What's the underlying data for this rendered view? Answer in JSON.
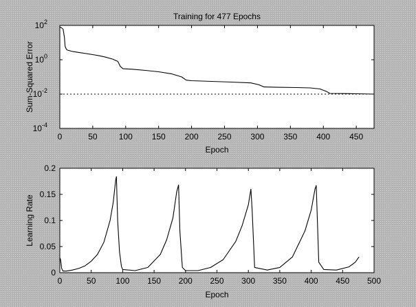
{
  "chart_data": [
    {
      "type": "line",
      "title": "Training for 477 Epochs",
      "xlabel": "Epoch",
      "ylabel": "Sum-Squared Error",
      "xlim": [
        0,
        477
      ],
      "ylim": [
        0.0001,
        100
      ],
      "yscale": "log",
      "xticks": [
        0,
        50,
        100,
        150,
        200,
        250,
        300,
        350,
        400,
        450
      ],
      "yticks": [
        {
          "value": 100,
          "base": "10",
          "exp": "2"
        },
        {
          "value": 1,
          "base": "10",
          "exp": "0"
        },
        {
          "value": 0.01,
          "base": "10",
          "exp": "-2"
        },
        {
          "value": 0.0001,
          "base": "10",
          "exp": "-4"
        }
      ],
      "grid": false,
      "series": [
        {
          "color": "#000000",
          "style": "solid",
          "x": [
            0,
            2,
            5,
            7,
            8,
            10,
            12,
            20,
            30,
            40,
            50,
            60,
            70,
            80,
            88,
            92,
            96,
            110,
            130,
            150,
            170,
            185,
            192,
            200,
            230,
            260,
            290,
            302,
            310,
            330,
            360,
            380,
            395,
            405,
            410,
            430,
            450,
            477
          ],
          "y": [
            80,
            75,
            60,
            20,
            6,
            4,
            3.6,
            3.0,
            2.6,
            2.3,
            2.0,
            1.7,
            1.4,
            1.1,
            0.8,
            0.4,
            0.3,
            0.28,
            0.24,
            0.2,
            0.15,
            0.1,
            0.065,
            0.06,
            0.055,
            0.05,
            0.045,
            0.035,
            0.026,
            0.025,
            0.024,
            0.023,
            0.02,
            0.014,
            0.011,
            0.0108,
            0.0105,
            0.01
          ]
        },
        {
          "color": "#000000",
          "style": "dotted",
          "x": [
            0,
            477
          ],
          "y": [
            0.01,
            0.01
          ]
        }
      ]
    },
    {
      "type": "line",
      "title": "",
      "xlabel": "Epoch",
      "ylabel": "Learning Rate",
      "xlim": [
        0,
        500
      ],
      "ylim": [
        0,
        0.2
      ],
      "yscale": "linear",
      "xticks": [
        0,
        50,
        100,
        150,
        200,
        250,
        300,
        350,
        400,
        450,
        500
      ],
      "yticks": [
        0,
        0.05,
        0.1,
        0.15,
        0.2
      ],
      "grid": false,
      "series": [
        {
          "color": "#000000",
          "style": "solid",
          "x": [
            0,
            1,
            2,
            3,
            5,
            10,
            20,
            30,
            40,
            50,
            60,
            70,
            80,
            85,
            89,
            90,
            92,
            95,
            98,
            100,
            120,
            140,
            160,
            170,
            180,
            186,
            189,
            191,
            195,
            200,
            220,
            240,
            260,
            280,
            290,
            300,
            304,
            306,
            310,
            330,
            350,
            370,
            390,
            400,
            406,
            408,
            412,
            420,
            440,
            460,
            470,
            476
          ],
          "y": [
            0.028,
            0.026,
            0.018,
            0.008,
            0.003,
            0.003,
            0.005,
            0.008,
            0.013,
            0.022,
            0.035,
            0.058,
            0.1,
            0.135,
            0.178,
            0.184,
            0.1,
            0.04,
            0.012,
            0.006,
            0.004,
            0.01,
            0.035,
            0.063,
            0.105,
            0.155,
            0.168,
            0.08,
            0.01,
            0.004,
            0.004,
            0.01,
            0.025,
            0.06,
            0.09,
            0.13,
            0.16,
            0.12,
            0.01,
            0.005,
            0.01,
            0.03,
            0.08,
            0.12,
            0.16,
            0.167,
            0.02,
            0.006,
            0.005,
            0.011,
            0.02,
            0.03
          ]
        }
      ]
    }
  ]
}
